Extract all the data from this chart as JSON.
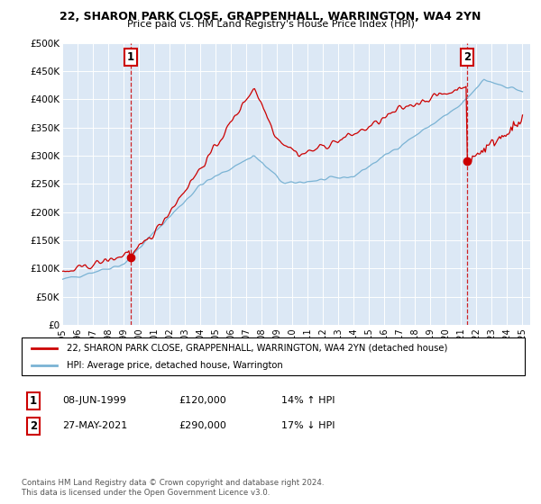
{
  "title": "22, SHARON PARK CLOSE, GRAPPENHALL, WARRINGTON, WA4 2YN",
  "subtitle": "Price paid vs. HM Land Registry's House Price Index (HPI)",
  "sale1": {
    "date": "08-JUN-1999",
    "price": 120000,
    "hpi_pct": "14%",
    "hpi_dir": "↑"
  },
  "sale2": {
    "date": "27-MAY-2021",
    "price": 290000,
    "hpi_pct": "17%",
    "hpi_dir": "↓"
  },
  "legend_line1": "22, SHARON PARK CLOSE, GRAPPENHALL, WARRINGTON, WA4 2YN (detached house)",
  "legend_line2": "HPI: Average price, detached house, Warrington",
  "footer": "Contains HM Land Registry data © Crown copyright and database right 2024.\nThis data is licensed under the Open Government Licence v3.0.",
  "sale1_label": "1",
  "sale2_label": "2",
  "vline1_x": 1999.44,
  "vline2_x": 2021.41,
  "sale1_price": 120000,
  "sale2_price": 290000,
  "hpi_color": "#7ab3d4",
  "price_color": "#cc0000",
  "vline_color": "#cc0000",
  "background_color": "#dce8f5",
  "ylim": [
    0,
    500000
  ],
  "xlim_start": 1995.0,
  "xlim_end": 2025.5
}
